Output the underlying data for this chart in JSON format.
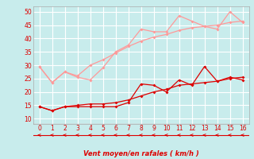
{
  "title": "",
  "xlabel": "Vent moyen/en rafales ( km/h )",
  "x": [
    0,
    1,
    2,
    3,
    4,
    5,
    6,
    7,
    8,
    9,
    10,
    11,
    12,
    13,
    14,
    15,
    16
  ],
  "line1": [
    14.5,
    13.0,
    14.5,
    14.5,
    14.5,
    14.5,
    14.5,
    16.0,
    23.0,
    22.5,
    20.0,
    24.5,
    22.5,
    29.5,
    24.0,
    25.5,
    24.5
  ],
  "line2": [
    14.5,
    13.0,
    14.5,
    15.0,
    15.5,
    15.5,
    16.0,
    17.0,
    18.5,
    20.0,
    21.0,
    22.5,
    23.0,
    23.5,
    24.0,
    25.0,
    25.5
  ],
  "line3": [
    29.5,
    23.5,
    27.5,
    25.5,
    24.5,
    29.0,
    35.0,
    37.5,
    43.5,
    42.5,
    42.5,
    48.5,
    46.5,
    44.5,
    43.5,
    50.0,
    46.0
  ],
  "line4": [
    29.5,
    23.5,
    27.5,
    26.0,
    30.0,
    32.0,
    34.5,
    37.0,
    39.0,
    40.5,
    41.5,
    43.0,
    44.0,
    44.5,
    45.0,
    46.0,
    46.5
  ],
  "color_dark": "#dd0000",
  "color_light": "#ff9999",
  "background_color": "#c8ecec",
  "grid_color": "#b0d8d8",
  "ylim": [
    8,
    52
  ],
  "xlim": [
    -0.5,
    16.5
  ],
  "yticks": [
    10,
    15,
    20,
    25,
    30,
    35,
    40,
    45,
    50
  ],
  "xticks": [
    0,
    1,
    2,
    3,
    4,
    5,
    6,
    7,
    8,
    9,
    10,
    11,
    12,
    13,
    14,
    15,
    16
  ]
}
